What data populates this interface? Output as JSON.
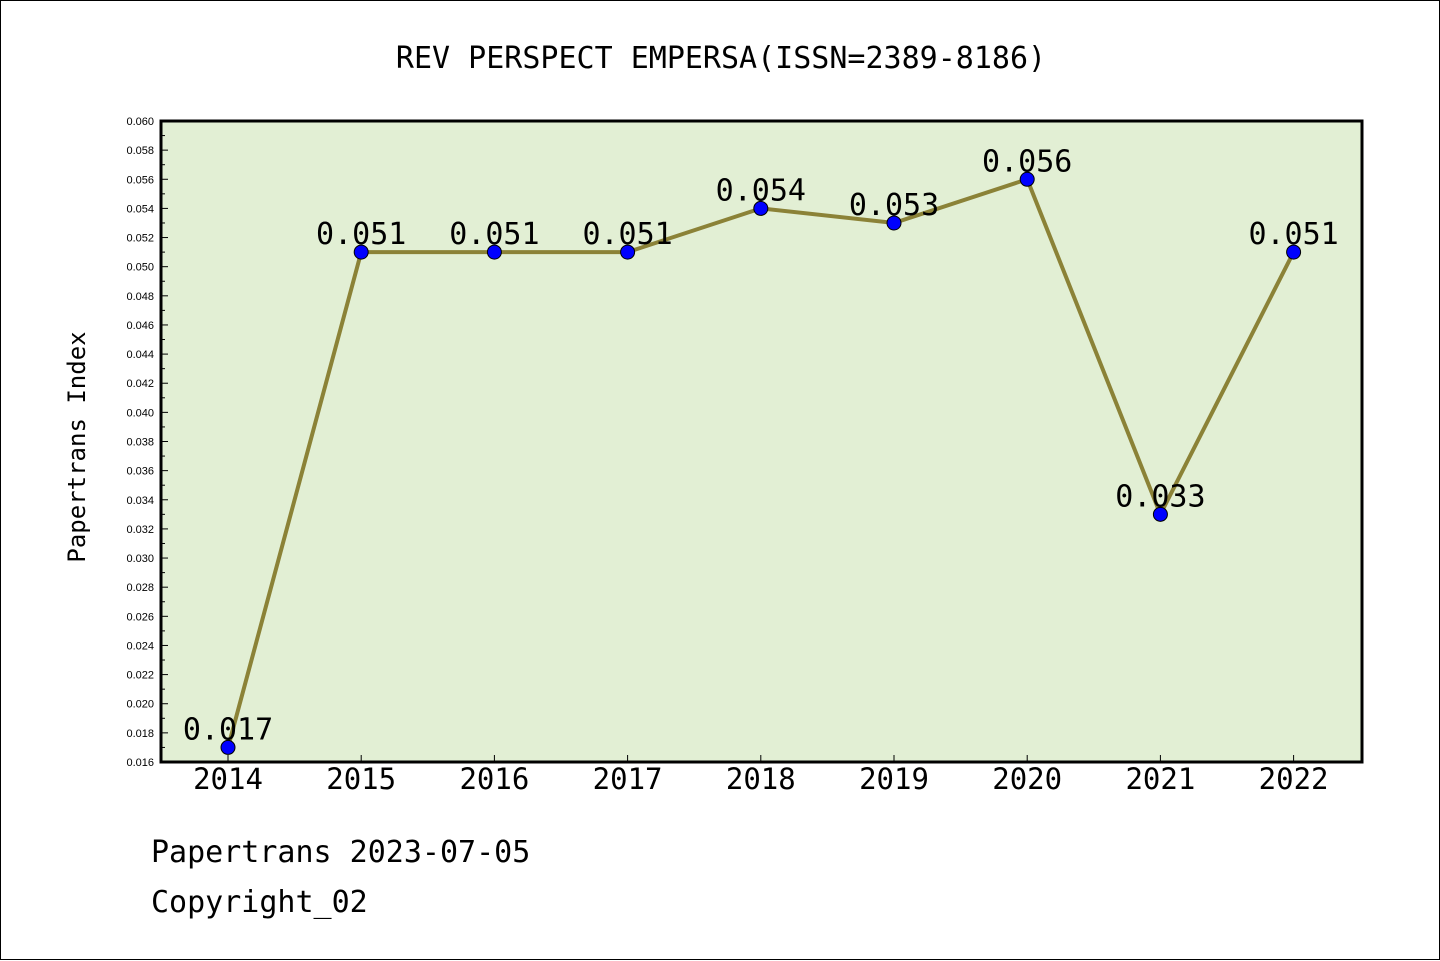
{
  "chart_data": {
    "type": "line",
    "title": "REV PERSPECT EMPERSA(ISSN=2389-8186)",
    "xlabel": "",
    "ylabel": "Papertrans Index",
    "categories": [
      "2014",
      "2015",
      "2016",
      "2017",
      "2018",
      "2019",
      "2020",
      "2021",
      "2022"
    ],
    "series": [
      {
        "values": [
          0.017,
          0.051,
          0.051,
          0.051,
          0.054,
          0.053,
          0.056,
          0.033,
          0.051
        ],
        "data_labels": [
          "0.017",
          "0.051",
          "0.051",
          "0.051",
          "0.054",
          "0.053",
          "0.056",
          "0.033",
          "0.051"
        ]
      }
    ],
    "ylim": [
      0.016,
      0.06
    ],
    "y_ticks": [
      "0.016",
      "0.018",
      "0.020",
      "0.022",
      "0.024",
      "0.026",
      "0.028",
      "0.030",
      "0.032",
      "0.034",
      "0.036",
      "0.038",
      "0.040",
      "0.042",
      "0.044",
      "0.046",
      "0.048",
      "0.050",
      "0.052",
      "0.054",
      "0.056",
      "0.058",
      "0.060"
    ],
    "grid": false,
    "legend": "none",
    "colors": {
      "plot_background": "#e2efd4",
      "line": "#8b8237",
      "marker": "#0000ff",
      "frame": "#000000"
    }
  },
  "footer": {
    "credit": "Papertrans 2023-07-05",
    "copyright": "Copyright_02"
  }
}
